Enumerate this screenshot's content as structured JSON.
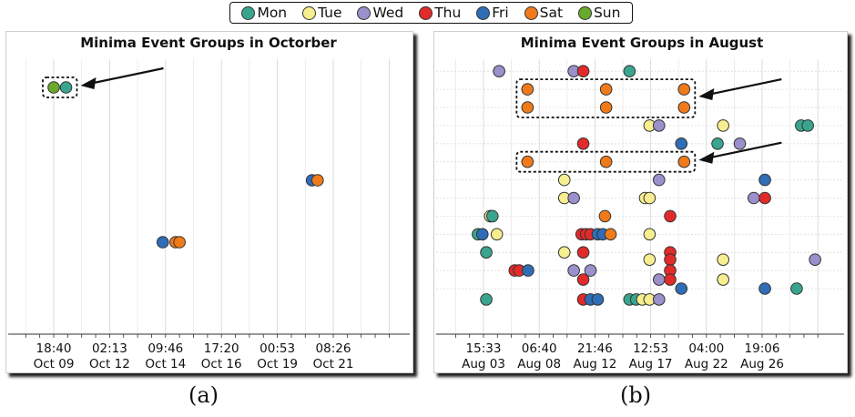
{
  "legend": {
    "items": [
      {
        "label": "Mon",
        "color": "#3aa58f"
      },
      {
        "label": "Tue",
        "color": "#f7ee8f"
      },
      {
        "label": "Wed",
        "color": "#9b8fcc"
      },
      {
        "label": "Thu",
        "color": "#e32a2a"
      },
      {
        "label": "Fri",
        "color": "#2f6db6"
      },
      {
        "label": "Sat",
        "color": "#f07a1a"
      },
      {
        "label": "Sun",
        "color": "#6aaa2a"
      }
    ]
  },
  "captions": {
    "a": "(a)",
    "b": "(b)"
  },
  "chart_data": [
    {
      "type": "scatter",
      "title": "Minima Event Groups in Octorber",
      "x_ticks": [
        {
          "time": "18:40",
          "date": "Oct 09"
        },
        {
          "time": "02:13",
          "date": "Oct 12"
        },
        {
          "time": "09:46",
          "date": "Oct 14"
        },
        {
          "time": "17:20",
          "date": "Oct 16"
        },
        {
          "time": "00:53",
          "date": "Oct 19"
        },
        {
          "time": "08:26",
          "date": "Oct 21"
        }
      ],
      "x_unit": "tick index",
      "y_unit": "group row",
      "grid": "vertical",
      "points": [
        {
          "x": 0.0,
          "y": 11,
          "day": "Sun"
        },
        {
          "x": 0.22,
          "y": 11,
          "day": "Mon"
        },
        {
          "x": 1.95,
          "y": 1,
          "day": "Fri"
        },
        {
          "x": 2.18,
          "y": 1,
          "day": "Sat"
        },
        {
          "x": 2.25,
          "y": 1,
          "day": "Sat"
        },
        {
          "x": 4.62,
          "y": 5,
          "day": "Fri"
        },
        {
          "x": 4.72,
          "y": 5,
          "day": "Sat"
        }
      ],
      "highlight_groups": [
        {
          "x_start": 0.0,
          "x_end": 0.22,
          "y_start": 11,
          "y_end": 11
        }
      ]
    },
    {
      "type": "scatter",
      "title": "Minima Event Groups in August",
      "x_ticks": [
        {
          "time": "15:33",
          "date": "Aug 03"
        },
        {
          "time": "06:40",
          "date": "Aug 08"
        },
        {
          "time": "21:46",
          "date": "Aug 12"
        },
        {
          "time": "12:53",
          "date": "Aug 17"
        },
        {
          "time": "04:00",
          "date": "Aug 22"
        },
        {
          "time": "19:06",
          "date": "Aug 26"
        }
      ],
      "x_unit": "tick index",
      "y_unit": "group row",
      "grid": "both",
      "points": [
        {
          "x": 0.28,
          "y": 12,
          "day": "Wed"
        },
        {
          "x": 1.62,
          "y": 12,
          "day": "Wed"
        },
        {
          "x": 1.79,
          "y": 12,
          "day": "Thu"
        },
        {
          "x": 2.62,
          "y": 12,
          "day": "Mon"
        },
        {
          "x": 0.79,
          "y": 11,
          "day": "Sat"
        },
        {
          "x": 2.2,
          "y": 11,
          "day": "Sat"
        },
        {
          "x": 3.6,
          "y": 11,
          "day": "Sat"
        },
        {
          "x": 0.79,
          "y": 10,
          "day": "Sat"
        },
        {
          "x": 2.2,
          "y": 10,
          "day": "Sat"
        },
        {
          "x": 3.6,
          "y": 10,
          "day": "Sat"
        },
        {
          "x": 2.98,
          "y": 9,
          "day": "Tue"
        },
        {
          "x": 3.15,
          "y": 9,
          "day": "Wed"
        },
        {
          "x": 4.3,
          "y": 9,
          "day": "Tue"
        },
        {
          "x": 5.7,
          "y": 9,
          "day": "Mon"
        },
        {
          "x": 5.82,
          "y": 9,
          "day": "Mon"
        },
        {
          "x": 1.79,
          "y": 8,
          "day": "Thu"
        },
        {
          "x": 3.55,
          "y": 8,
          "day": "Fri"
        },
        {
          "x": 4.2,
          "y": 8,
          "day": "Mon"
        },
        {
          "x": 4.6,
          "y": 8,
          "day": "Wed"
        },
        {
          "x": 0.79,
          "y": 7,
          "day": "Sat"
        },
        {
          "x": 2.2,
          "y": 7,
          "day": "Sat"
        },
        {
          "x": 3.6,
          "y": 7,
          "day": "Sat"
        },
        {
          "x": 1.45,
          "y": 6,
          "day": "Tue"
        },
        {
          "x": 3.15,
          "y": 6,
          "day": "Wed"
        },
        {
          "x": 5.05,
          "y": 6,
          "day": "Fri"
        },
        {
          "x": 1.45,
          "y": 5,
          "day": "Tue"
        },
        {
          "x": 1.62,
          "y": 5,
          "day": "Wed"
        },
        {
          "x": 2.9,
          "y": 5,
          "day": "Tue"
        },
        {
          "x": 2.98,
          "y": 5,
          "day": "Tue"
        },
        {
          "x": 4.85,
          "y": 5,
          "day": "Wed"
        },
        {
          "x": 5.05,
          "y": 5,
          "day": "Thu"
        },
        {
          "x": 0.12,
          "y": 4,
          "day": "Tue"
        },
        {
          "x": 0.16,
          "y": 4,
          "day": "Mon"
        },
        {
          "x": 2.18,
          "y": 4,
          "day": "Sat"
        },
        {
          "x": 3.35,
          "y": 4,
          "day": "Thu"
        },
        {
          "x": -0.1,
          "y": 3,
          "day": "Mon"
        },
        {
          "x": -0.02,
          "y": 3,
          "day": "Fri"
        },
        {
          "x": 0.24,
          "y": 3,
          "day": "Tue"
        },
        {
          "x": 1.76,
          "y": 3,
          "day": "Thu"
        },
        {
          "x": 1.84,
          "y": 3,
          "day": "Thu"
        },
        {
          "x": 1.92,
          "y": 3,
          "day": "Thu"
        },
        {
          "x": 2.05,
          "y": 3,
          "day": "Fri"
        },
        {
          "x": 2.14,
          "y": 3,
          "day": "Fri"
        },
        {
          "x": 2.28,
          "y": 3,
          "day": "Sat"
        },
        {
          "x": 2.98,
          "y": 3,
          "day": "Tue"
        },
        {
          "x": 0.05,
          "y": 2,
          "day": "Mon"
        },
        {
          "x": 1.45,
          "y": 2,
          "day": "Tue"
        },
        {
          "x": 1.79,
          "y": 2,
          "day": "Thu"
        },
        {
          "x": 3.35,
          "y": 2,
          "day": "Thu"
        },
        {
          "x": 2.98,
          "y": 1.6,
          "day": "Tue"
        },
        {
          "x": 3.35,
          "y": 1.6,
          "day": "Thu"
        },
        {
          "x": 4.3,
          "y": 1.6,
          "day": "Tue"
        },
        {
          "x": 5.95,
          "y": 1.6,
          "day": "Wed"
        },
        {
          "x": 0.56,
          "y": 1,
          "day": "Thu"
        },
        {
          "x": 0.64,
          "y": 1,
          "day": "Thu"
        },
        {
          "x": 0.8,
          "y": 1,
          "day": "Fri"
        },
        {
          "x": 1.62,
          "y": 1,
          "day": "Wed"
        },
        {
          "x": 1.92,
          "y": 1,
          "day": "Wed"
        },
        {
          "x": 3.35,
          "y": 1,
          "day": "Thu"
        },
        {
          "x": 1.79,
          "y": 0.5,
          "day": "Thu"
        },
        {
          "x": 3.15,
          "y": 0.5,
          "day": "Wed"
        },
        {
          "x": 3.35,
          "y": 0.5,
          "day": "Thu"
        },
        {
          "x": 4.3,
          "y": 0.5,
          "day": "Tue"
        },
        {
          "x": 3.55,
          "y": 0,
          "day": "Fri"
        },
        {
          "x": 5.05,
          "y": 0,
          "day": "Fri"
        },
        {
          "x": 5.62,
          "y": 0,
          "day": "Mon"
        },
        {
          "x": 0.05,
          "y": -0.6,
          "day": "Mon"
        },
        {
          "x": 1.79,
          "y": -0.6,
          "day": "Thu"
        },
        {
          "x": 1.92,
          "y": -0.6,
          "day": "Fri"
        },
        {
          "x": 2.05,
          "y": -0.6,
          "day": "Fri"
        },
        {
          "x": 2.62,
          "y": -0.6,
          "day": "Mon"
        },
        {
          "x": 2.74,
          "y": -0.6,
          "day": "Mon"
        },
        {
          "x": 2.85,
          "y": -0.6,
          "day": "Tue"
        },
        {
          "x": 2.98,
          "y": -0.6,
          "day": "Tue"
        },
        {
          "x": 3.15,
          "y": -0.6,
          "day": "Wed"
        }
      ],
      "highlight_groups": [
        {
          "x_start": 0.79,
          "x_end": 3.6,
          "y_start": 10,
          "y_end": 11
        },
        {
          "x_start": 0.79,
          "x_end": 3.6,
          "y_start": 7,
          "y_end": 7
        }
      ]
    }
  ]
}
